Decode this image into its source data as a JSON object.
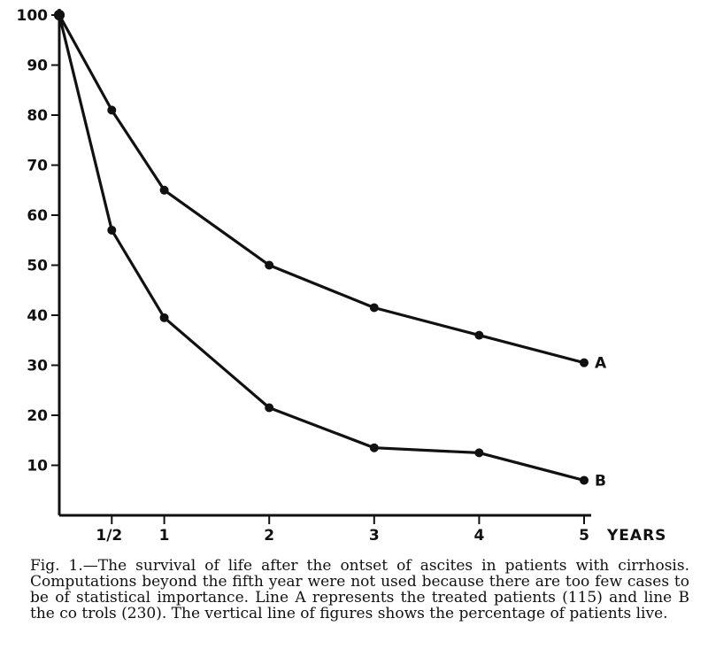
{
  "chart_data": {
    "type": "line",
    "x_tick_labels": [
      "1/2",
      "1",
      "2",
      "3",
      "4",
      "5"
    ],
    "x_tick_values": [
      0.5,
      1,
      2,
      3,
      4,
      5
    ],
    "xlabel": "YEARS",
    "y_tick_values": [
      10,
      20,
      30,
      40,
      50,
      60,
      70,
      80,
      90,
      100
    ],
    "y_tick_labels": [
      "10",
      "20",
      "30",
      "40",
      "50",
      "60",
      "70",
      "80",
      "90",
      "100"
    ],
    "xlim": [
      0,
      5
    ],
    "ylim": [
      0,
      100
    ],
    "grid": false,
    "series": [
      {
        "name": "A",
        "x": [
          0,
          0.5,
          1,
          2,
          3,
          4,
          5
        ],
        "y": [
          100,
          81,
          65,
          50,
          41.5,
          36,
          30.5
        ]
      },
      {
        "name": "B",
        "x": [
          0,
          0.5,
          1,
          2,
          3,
          4,
          5
        ],
        "y": [
          100,
          57,
          39.5,
          21.5,
          13.5,
          12.5,
          7
        ]
      }
    ]
  },
  "caption": "Fig. 1.—The survival of life after the ontset of ascites in patients with cirrhosis. Computations beyond the fifth year were not used because there are too few cases to be of statistical importance. Line A represents the treated patients (115) and line B the co trols (230). The vertical line of figures shows the percentage of patients live."
}
